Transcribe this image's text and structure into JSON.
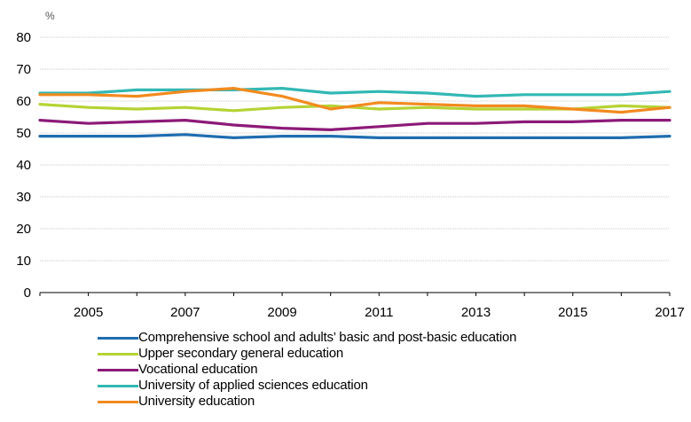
{
  "chart_data": {
    "type": "line",
    "title": "",
    "xlabel": "",
    "ylabel": "%",
    "ylim": [
      0,
      80
    ],
    "yticks": [
      0,
      10,
      20,
      30,
      40,
      50,
      60,
      70,
      80
    ],
    "xlim": [
      2004,
      2017
    ],
    "xticks": [
      "2005",
      "2007",
      "2009",
      "2011",
      "2013",
      "2015",
      "2017"
    ],
    "grid": "horizontal",
    "legend_position": "bottom",
    "x": [
      2004,
      2005,
      2006,
      2007,
      2008,
      2009,
      2010,
      2011,
      2012,
      2013,
      2014,
      2015,
      2016,
      2017
    ],
    "series": [
      {
        "name": "Comprehensive school and adults’ basic and post-basic education",
        "color": "#1f6db0",
        "values": [
          49.0,
          49.0,
          49.0,
          49.5,
          48.5,
          49.0,
          49.0,
          48.5,
          48.5,
          48.5,
          48.5,
          48.5,
          48.5,
          49.0
        ]
      },
      {
        "name": "Upper secondary general education",
        "color": "#b5d334",
        "values": [
          59.0,
          58.0,
          57.5,
          58.0,
          57.0,
          58.0,
          58.5,
          57.5,
          58.0,
          57.5,
          57.5,
          57.5,
          58.5,
          58.0
        ]
      },
      {
        "name": "Vocational education",
        "color": "#8c1a78",
        "values": [
          54.0,
          53.0,
          53.5,
          54.0,
          52.5,
          51.5,
          51.0,
          52.0,
          53.0,
          53.0,
          53.5,
          53.5,
          54.0,
          54.0
        ]
      },
      {
        "name": "University of applied sciences education",
        "color": "#32b8b4",
        "values": [
          62.5,
          62.5,
          63.5,
          63.5,
          63.5,
          64.0,
          62.5,
          63.0,
          62.5,
          61.5,
          62.0,
          62.0,
          62.0,
          63.0
        ]
      },
      {
        "name": "University education",
        "color": "#f28a1f",
        "values": [
          62.0,
          62.0,
          61.5,
          63.0,
          64.0,
          61.5,
          57.5,
          59.5,
          59.0,
          58.5,
          58.5,
          57.5,
          56.5,
          58.0
        ]
      }
    ]
  }
}
